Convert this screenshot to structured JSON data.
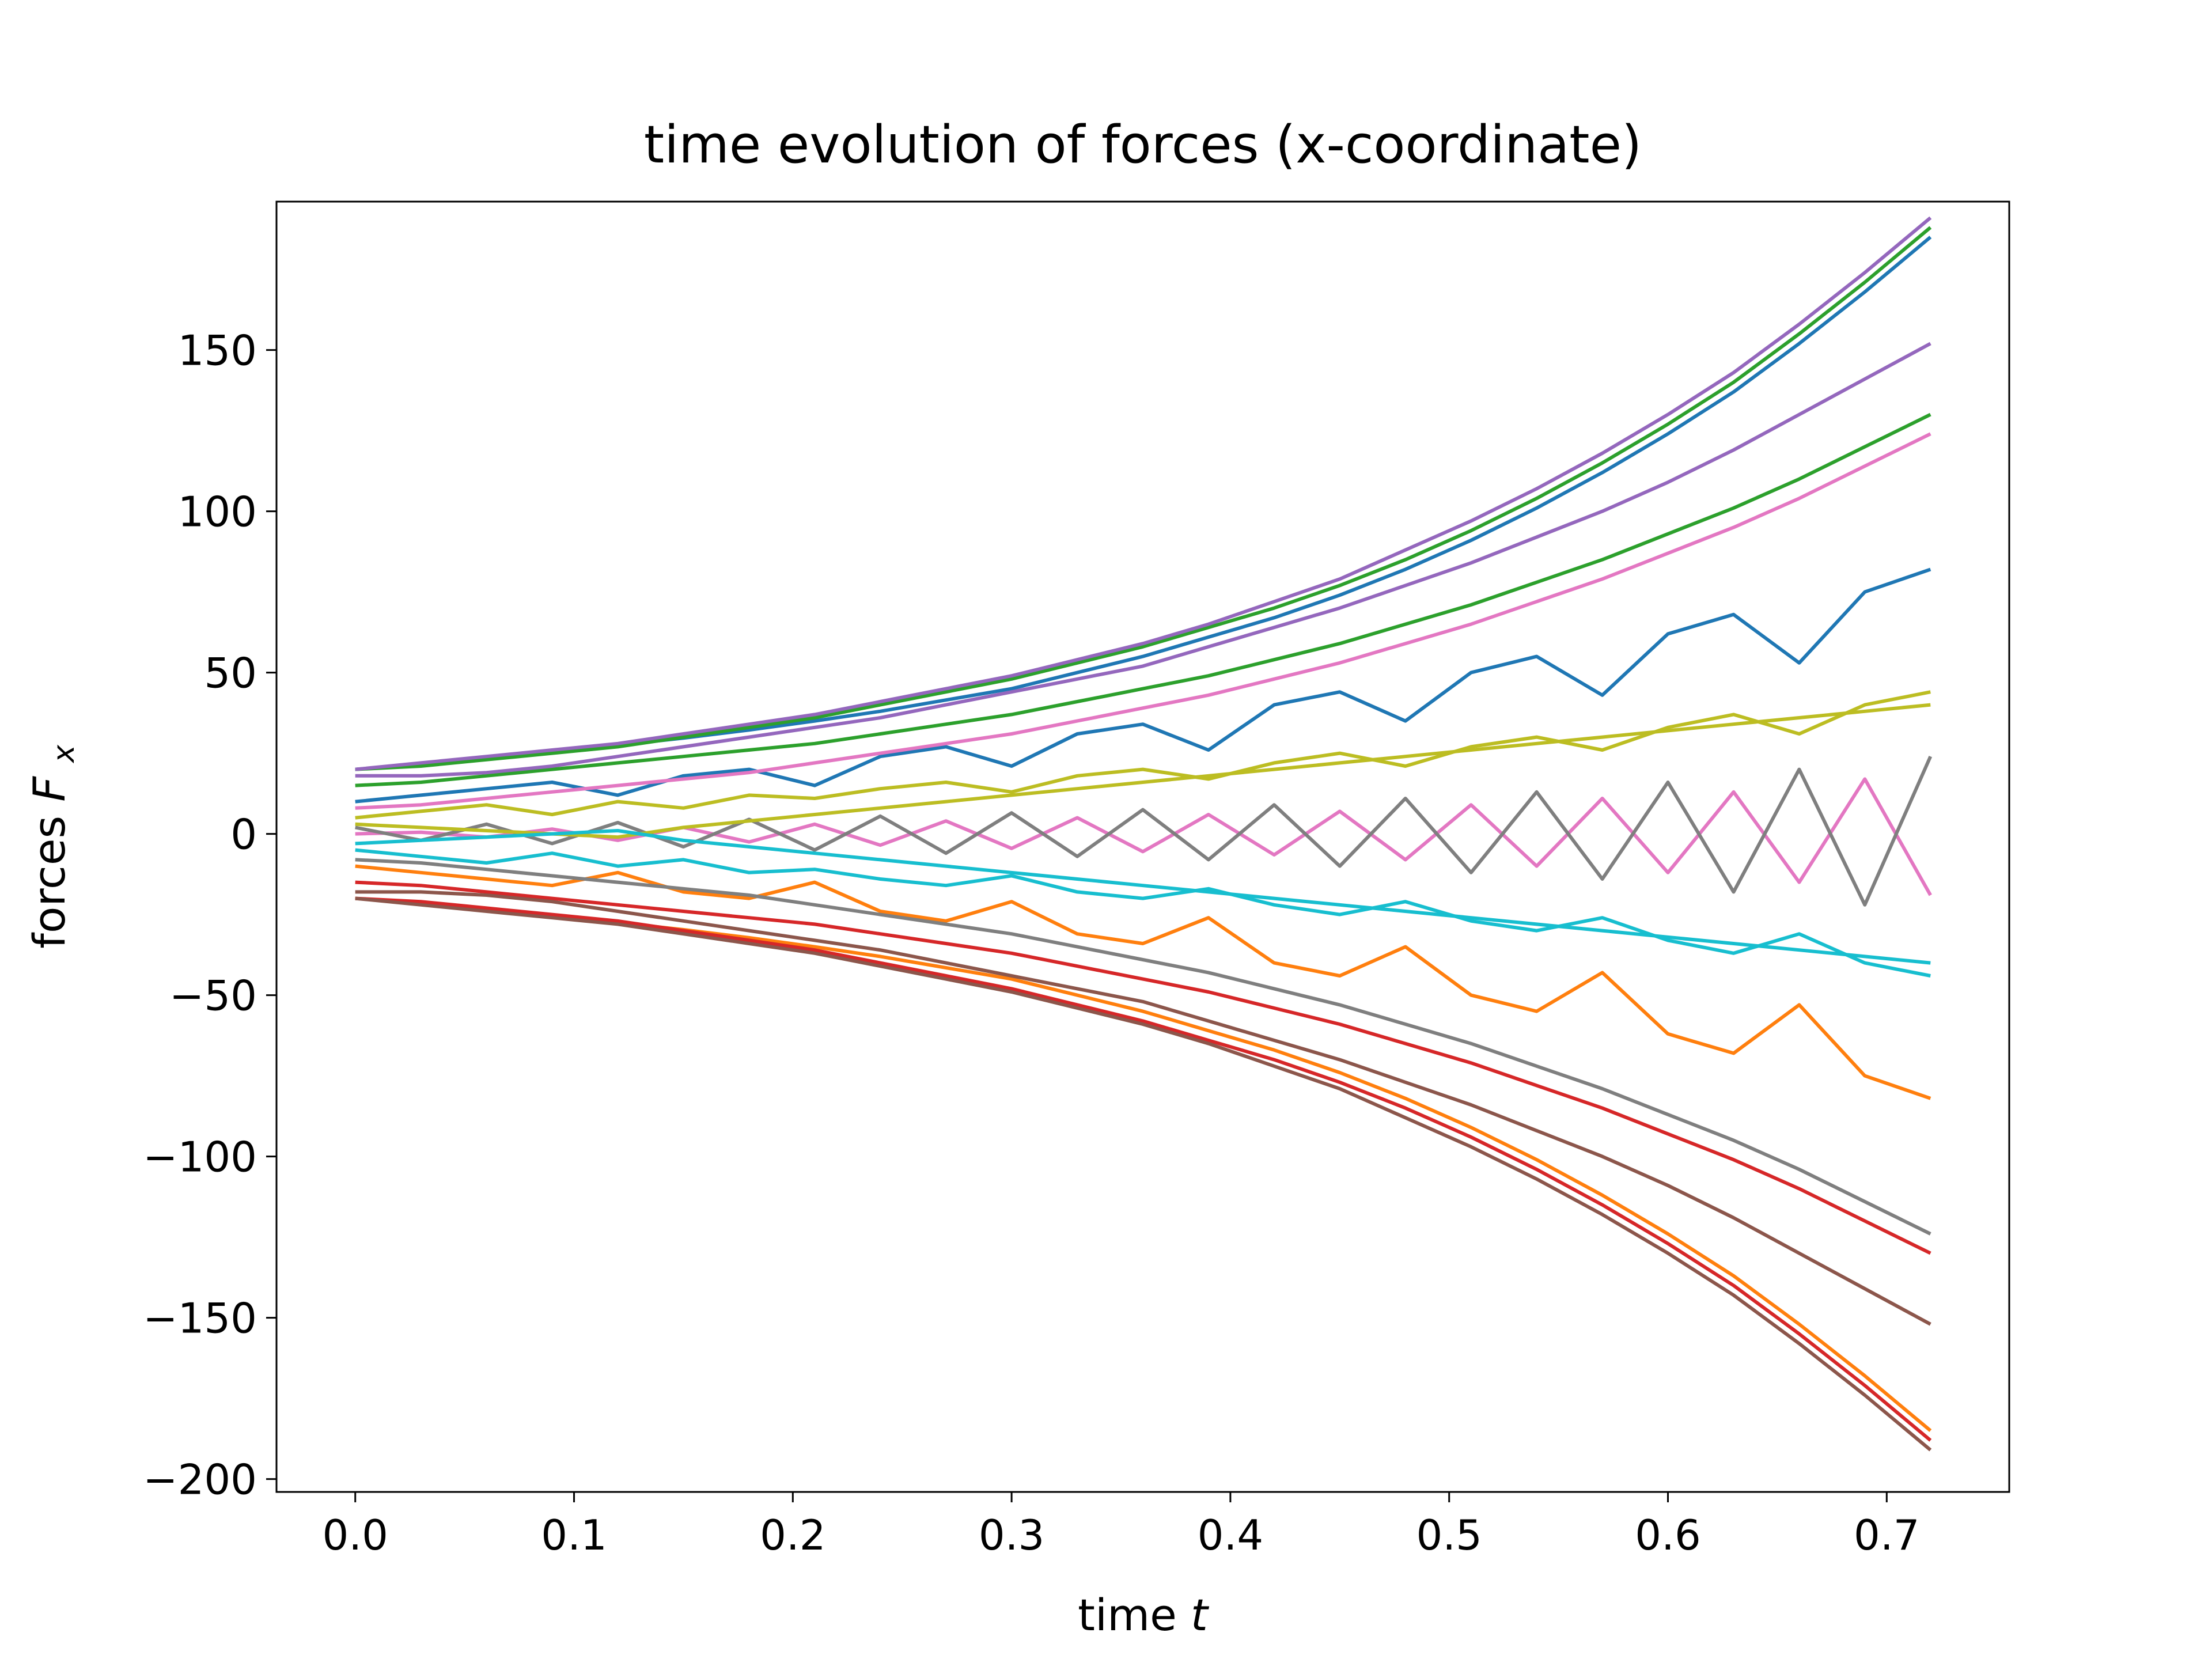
{
  "chart_data": {
    "type": "line",
    "title": "time evolution of forces (x-coordinate)",
    "xlabel": {
      "main": "time ",
      "var": "t"
    },
    "ylabel": {
      "main": "forces ",
      "var": "F",
      "sub": "x"
    },
    "xlim": [
      -0.036,
      0.756
    ],
    "ylim": [
      -204,
      196
    ],
    "xticks": [
      0.0,
      0.1,
      0.2,
      0.3,
      0.4,
      0.5,
      0.6,
      0.7
    ],
    "xtick_labels": [
      "0.0",
      "0.1",
      "0.2",
      "0.3",
      "0.4",
      "0.5",
      "0.6",
      "0.7"
    ],
    "yticks": [
      150,
      100,
      50,
      0,
      -50,
      -100,
      -150,
      -200
    ],
    "ytick_labels": [
      "150",
      "100",
      "50",
      "0",
      "−50",
      "−100",
      "−150",
      "−200"
    ],
    "grid": false,
    "legend": "none",
    "x": [
      0.0,
      0.03,
      0.06,
      0.09,
      0.12,
      0.15,
      0.18,
      0.21,
      0.24,
      0.27,
      0.3,
      0.33,
      0.36,
      0.39,
      0.42,
      0.45,
      0.48,
      0.51,
      0.54,
      0.57,
      0.6,
      0.63,
      0.66,
      0.69,
      0.72
    ],
    "colors": [
      "#1f77b4",
      "#ff7f0e",
      "#2ca02c",
      "#d62728",
      "#9467bd",
      "#8c564b",
      "#e377c2",
      "#7f7f7f",
      "#bcbd22",
      "#17becf"
    ],
    "series": [
      {
        "values": [
          20,
          21.5,
          23.5,
          25.5,
          27.5,
          29.7,
          32.2,
          35,
          38,
          41.5,
          45,
          50,
          55,
          61,
          67,
          74,
          82,
          91,
          101,
          112,
          124,
          137,
          152,
          168,
          185
        ]
      },
      {
        "values": [
          -20,
          -21.5,
          -23.5,
          -25.5,
          -27.5,
          -29.7,
          -32.2,
          -35,
          -38,
          -41.5,
          -45,
          -50,
          -55,
          -61,
          -67,
          -74,
          -82,
          -91,
          -101,
          -112,
          -124,
          -137,
          -152,
          -168,
          -185
        ]
      },
      {
        "values": [
          20,
          21,
          23,
          25,
          27,
          30,
          33,
          36,
          40,
          44,
          48,
          53,
          58,
          64,
          70,
          77,
          85,
          94,
          104,
          115,
          127,
          140,
          155,
          171,
          188
        ]
      },
      {
        "values": [
          -20,
          -21,
          -23,
          -25,
          -27,
          -30,
          -33,
          -36,
          -40,
          -44,
          -48,
          -53,
          -58,
          -64,
          -70,
          -77,
          -85,
          -94,
          -104,
          -115,
          -127,
          -140,
          -155,
          -171,
          -188
        ]
      },
      {
        "values": [
          20,
          22,
          24,
          26,
          28,
          31,
          34,
          37,
          41,
          45,
          49,
          54,
          59,
          65,
          72,
          79,
          88,
          97,
          107,
          118,
          130,
          143,
          158,
          174,
          191
        ]
      },
      {
        "values": [
          -20,
          -22,
          -24,
          -26,
          -28,
          -31,
          -34,
          -37,
          -41,
          -45,
          -49,
          -54,
          -59,
          -65,
          -72,
          -79,
          -88,
          -97,
          -107,
          -118,
          -130,
          -143,
          -158,
          -174,
          -191
        ]
      },
      {
        "values": [
          0,
          0.5,
          -1,
          1.5,
          -2,
          2,
          -2.5,
          3,
          -3.5,
          4,
          -4.5,
          5,
          -5.5,
          6,
          -6.5,
          7,
          -8,
          9,
          -10,
          11,
          -12,
          13,
          -15,
          17,
          -19
        ]
      },
      {
        "values": [
          2,
          -2,
          3,
          -3,
          3.5,
          -4,
          4.5,
          -5,
          5.5,
          -6,
          6.5,
          -7,
          7.5,
          -8,
          9,
          -10,
          11,
          -12,
          13,
          -14,
          16,
          -18,
          20,
          -22,
          24
        ]
      },
      {
        "values": [
          5,
          7,
          9,
          6,
          10,
          8,
          12,
          11,
          14,
          16,
          13,
          18,
          20,
          17,
          22,
          25,
          21,
          27,
          30,
          26,
          33,
          37,
          31,
          40,
          44
        ]
      },
      {
        "values": [
          -5,
          -7,
          -9,
          -6,
          -10,
          -8,
          -12,
          -11,
          -14,
          -16,
          -13,
          -18,
          -20,
          -17,
          -22,
          -25,
          -21,
          -27,
          -30,
          -26,
          -33,
          -37,
          -31,
          -40,
          -44
        ]
      },
      {
        "values": [
          10,
          12,
          14,
          16,
          12,
          18,
          20,
          15,
          24,
          27,
          21,
          31,
          34,
          26,
          40,
          44,
          35,
          50,
          55,
          43,
          62,
          68,
          53,
          75,
          82
        ]
      },
      {
        "values": [
          -10,
          -12,
          -14,
          -16,
          -12,
          -18,
          -20,
          -15,
          -24,
          -27,
          -21,
          -31,
          -34,
          -26,
          -40,
          -44,
          -35,
          -50,
          -55,
          -43,
          -62,
          -68,
          -53,
          -75,
          -82
        ]
      },
      {
        "values": [
          15,
          16,
          18,
          20,
          22,
          24,
          26,
          28,
          31,
          34,
          37,
          41,
          45,
          49,
          54,
          59,
          65,
          71,
          78,
          85,
          93,
          101,
          110,
          120,
          130
        ]
      },
      {
        "values": [
          -15,
          -16,
          -18,
          -20,
          -22,
          -24,
          -26,
          -28,
          -31,
          -34,
          -37,
          -41,
          -45,
          -49,
          -54,
          -59,
          -65,
          -71,
          -78,
          -85,
          -93,
          -101,
          -110,
          -120,
          -130
        ]
      },
      {
        "values": [
          18,
          18,
          19,
          21,
          24,
          27,
          30,
          33,
          36,
          40,
          44,
          48,
          52,
          58,
          64,
          70,
          77,
          84,
          92,
          100,
          109,
          119,
          130,
          141,
          152
        ]
      },
      {
        "values": [
          -18,
          -18,
          -19,
          -21,
          -24,
          -27,
          -30,
          -33,
          -36,
          -40,
          -44,
          -48,
          -52,
          -58,
          -64,
          -70,
          -77,
          -84,
          -92,
          -100,
          -109,
          -119,
          -130,
          -141,
          -152
        ]
      },
      {
        "values": [
          8,
          9,
          11,
          13,
          15,
          17,
          19,
          22,
          25,
          28,
          31,
          35,
          39,
          43,
          48,
          53,
          59,
          65,
          72,
          79,
          87,
          95,
          104,
          114,
          124
        ]
      },
      {
        "values": [
          -8,
          -9,
          -11,
          -13,
          -15,
          -17,
          -19,
          -22,
          -25,
          -28,
          -31,
          -35,
          -39,
          -43,
          -48,
          -53,
          -59,
          -65,
          -72,
          -79,
          -87,
          -95,
          -104,
          -114,
          -124
        ]
      },
      {
        "values": [
          3,
          2,
          1,
          0,
          -1,
          2,
          4,
          6,
          8,
          10,
          12,
          14,
          16,
          18,
          20,
          22,
          24,
          26,
          28,
          30,
          32,
          34,
          36,
          38,
          40
        ]
      },
      {
        "values": [
          -3,
          -2,
          -1,
          0,
          1,
          -2,
          -4,
          -6,
          -8,
          -10,
          -12,
          -14,
          -16,
          -18,
          -20,
          -22,
          -24,
          -26,
          -28,
          -30,
          -32,
          -34,
          -36,
          -38,
          -40
        ]
      }
    ]
  }
}
